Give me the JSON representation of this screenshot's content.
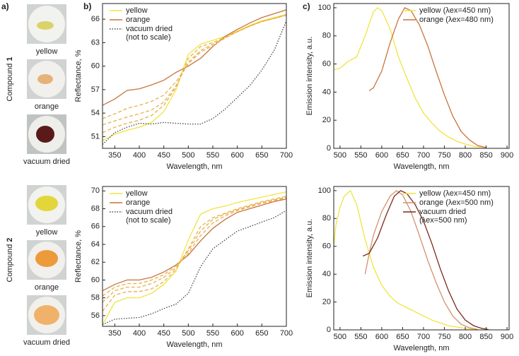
{
  "panel_labels": [
    "a)",
    "b)",
    "c)"
  ],
  "compounds": [
    {
      "text": "Compound",
      "number": "1"
    },
    {
      "text": "Compound",
      "number": "2"
    }
  ],
  "photo_labels": [
    [
      "yellow",
      "orange",
      "vacuum dried"
    ],
    [
      "yellow",
      "orange",
      "vacuum dried"
    ]
  ],
  "chart_data": [
    {
      "type": "line",
      "xlabel": "Wavelength, nm",
      "ylabel": "Reflectance, %",
      "legend": "upper left",
      "xlim": [
        325,
        700
      ],
      "xticks": [
        350,
        400,
        450,
        500,
        550,
        600,
        650,
        700
      ],
      "ylim": [
        49.5,
        68
      ],
      "yticks": [
        51,
        54,
        57,
        60,
        63,
        66
      ],
      "x": [
        325,
        350,
        375,
        400,
        425,
        450,
        475,
        500,
        525,
        550,
        575,
        600,
        625,
        650,
        675,
        700
      ],
      "series": [
        {
          "name": "yellow",
          "color": "#f0e440",
          "dash": "solid",
          "values": [
            50.5,
            51.3,
            51.8,
            52.2,
            52.8,
            54.2,
            57,
            61.5,
            62.8,
            63.3,
            63.8,
            64.5,
            65.2,
            65.8,
            66.2,
            66.6
          ]
        },
        {
          "name": "orange",
          "color": "#c8743c",
          "dash": "solid",
          "values": [
            55,
            55.8,
            56.9,
            57.1,
            57.6,
            58.2,
            59.2,
            60,
            61,
            62.5,
            63.8,
            64.7,
            65.5,
            66.2,
            66.7,
            67.2
          ]
        },
        {
          "name": "vacuum dried\n(not to scale)",
          "color": "#444444",
          "dash": "dotted",
          "values": [
            50,
            51.5,
            52.2,
            52.7,
            52.6,
            52.8,
            52.7,
            52.6,
            52.6,
            53.3,
            54.5,
            56,
            57.5,
            59.5,
            62,
            65.8
          ]
        },
        {
          "color": "#e8b04a",
          "dash": "dashed",
          "values": [
            51.5,
            52.2,
            52.7,
            53.1,
            53.7,
            55,
            57.3,
            61,
            62.5,
            63,
            63.7,
            64.4,
            65.1,
            65.7,
            66.1,
            66.5
          ]
        },
        {
          "color": "#e8b04a",
          "dash": "dashed",
          "values": [
            52.5,
            53,
            53.5,
            53.9,
            54.4,
            55.4,
            57.5,
            60.5,
            62,
            62.8,
            63.6,
            64.4,
            65.1,
            65.7,
            66.1,
            66.5
          ]
        },
        {
          "color": "#e8b04a",
          "dash": "dashed",
          "values": [
            53.3,
            53.9,
            54.6,
            55,
            55.5,
            56.3,
            58,
            60.3,
            61.8,
            62.6,
            63.6,
            64.4,
            65.1,
            65.7,
            66.1,
            66.6
          ]
        }
      ]
    },
    {
      "type": "line",
      "xlabel": "Wavelength, nm",
      "ylabel": "Emission intensity, a.u.",
      "legend": "upper right",
      "xlim": [
        485,
        905
      ],
      "xticks": [
        500,
        550,
        600,
        650,
        700,
        750,
        800,
        850,
        900
      ],
      "ylim": [
        0,
        103
      ],
      "yticks": [
        0,
        20,
        40,
        60,
        80,
        100
      ],
      "series": [
        {
          "name": "yellow (λex=450 nm)",
          "color": "#f0e440",
          "dash": "solid",
          "x": [
            485,
            500,
            520,
            540,
            560,
            580,
            590,
            600,
            620,
            640,
            660,
            680,
            700,
            720,
            740,
            760,
            780,
            800,
            820,
            850
          ],
          "values": [
            56,
            57,
            62,
            65,
            80,
            97,
            100,
            98,
            85,
            65,
            50,
            36,
            25,
            18,
            12,
            8,
            5,
            3,
            1.5,
            0.5
          ]
        },
        {
          "name": "orange (λex=480 nm)",
          "color": "#c8743c",
          "dash": "solid",
          "x": [
            570,
            580,
            600,
            620,
            640,
            655,
            670,
            690,
            710,
            730,
            750,
            770,
            790,
            810,
            830,
            850
          ],
          "values": [
            41,
            43,
            55,
            75,
            92,
            100,
            98,
            88,
            73,
            55,
            38,
            23,
            12,
            6,
            2,
            0.5
          ]
        }
      ]
    },
    {
      "type": "line",
      "xlabel": "Wavelength, nm",
      "ylabel": "Reflectance, %",
      "legend": "upper left",
      "xlim": [
        325,
        700
      ],
      "xticks": [
        350,
        400,
        450,
        500,
        550,
        600,
        650,
        700
      ],
      "ylim": [
        54.8,
        70.5
      ],
      "yticks": [
        56,
        58,
        60,
        62,
        64,
        66,
        68,
        70
      ],
      "x": [
        325,
        350,
        375,
        400,
        425,
        450,
        475,
        500,
        525,
        550,
        575,
        600,
        625,
        650,
        675,
        700
      ],
      "series": [
        {
          "name": "yellow",
          "color": "#f0e440",
          "dash": "solid",
          "values": [
            55,
            57.5,
            58,
            58,
            58.5,
            59.5,
            61,
            64.5,
            67.4,
            68,
            68.3,
            68.7,
            69,
            69.3,
            69.6,
            69.9
          ]
        },
        {
          "name": "orange",
          "color": "#c8743c",
          "dash": "solid",
          "values": [
            58.8,
            59.5,
            60,
            60,
            60.3,
            60.9,
            61.7,
            62.8,
            64.4,
            65.8,
            66.8,
            67.6,
            68,
            68.4,
            68.8,
            69.1
          ]
        },
        {
          "name": "vacuum dried\n(not to scale)",
          "color": "#444444",
          "dash": "dotted",
          "values": [
            55,
            55.6,
            55.7,
            55.8,
            56.2,
            56.8,
            57.3,
            58.5,
            61.5,
            63.5,
            64.5,
            65.5,
            66,
            66.5,
            67,
            67.8
          ]
        },
        {
          "color": "#e8b04a",
          "dash": "dashed",
          "values": [
            56.5,
            58.3,
            58.7,
            58.7,
            59,
            59.8,
            61.2,
            63.5,
            66,
            67,
            67.5,
            68,
            68.4,
            68.8,
            69.1,
            69.4
          ]
        },
        {
          "color": "#e8b04a",
          "dash": "dashed",
          "values": [
            57.5,
            58.8,
            59.2,
            59.2,
            59.6,
            60.3,
            61.4,
            63.3,
            65.5,
            66.8,
            67.4,
            67.9,
            68.3,
            68.7,
            69,
            69.3
          ]
        },
        {
          "color": "#e8b04a",
          "dash": "dashed",
          "values": [
            58.2,
            59.2,
            59.6,
            59.6,
            60,
            60.6,
            61.6,
            63,
            65,
            66.4,
            67.2,
            67.8,
            68.2,
            68.6,
            68.9,
            69.2
          ]
        }
      ]
    },
    {
      "type": "line",
      "xlabel": "Wavelength, nm",
      "ylabel": "Emission intensity, a.u.",
      "legend": "upper right",
      "xlim": [
        485,
        905
      ],
      "xticks": [
        500,
        550,
        600,
        650,
        700,
        750,
        800,
        850,
        900
      ],
      "ylim": [
        0,
        103
      ],
      "yticks": [
        0,
        20,
        40,
        60,
        80,
        100
      ],
      "series": [
        {
          "name": "yellow (λex=450 nm)",
          "color": "#f0e440",
          "dash": "solid",
          "x": [
            485,
            490,
            500,
            510,
            525,
            540,
            560,
            580,
            600,
            620,
            640,
            660,
            680,
            700,
            720,
            740,
            760,
            780,
            800,
            830
          ],
          "values": [
            60,
            75,
            88,
            96,
            100,
            90,
            65,
            45,
            32,
            24,
            19,
            16,
            13,
            10,
            7,
            5,
            3,
            2,
            1,
            0.3
          ]
        },
        {
          "name": "orange (λex=500 nm)",
          "color": "#d49070",
          "dash": "solid",
          "x": [
            560,
            570,
            580,
            600,
            620,
            635,
            650,
            670,
            690,
            710,
            730,
            750,
            770,
            790,
            810,
            830
          ],
          "values": [
            40,
            55,
            68,
            85,
            96,
            100,
            97,
            85,
            68,
            50,
            34,
            20,
            10,
            4,
            1.5,
            0.3
          ]
        },
        {
          "name": "vacuum dried\n(λex=500 nm)",
          "color": "#7a2a1a",
          "dash": "solid",
          "x": [
            555,
            570,
            590,
            610,
            630,
            645,
            660,
            680,
            700,
            720,
            740,
            760,
            780,
            800,
            820,
            840,
            855
          ],
          "values": [
            53,
            55,
            66,
            82,
            96,
            100,
            98,
            90,
            78,
            62,
            44,
            28,
            15,
            7,
            3,
            1,
            0.3
          ]
        }
      ]
    }
  ]
}
